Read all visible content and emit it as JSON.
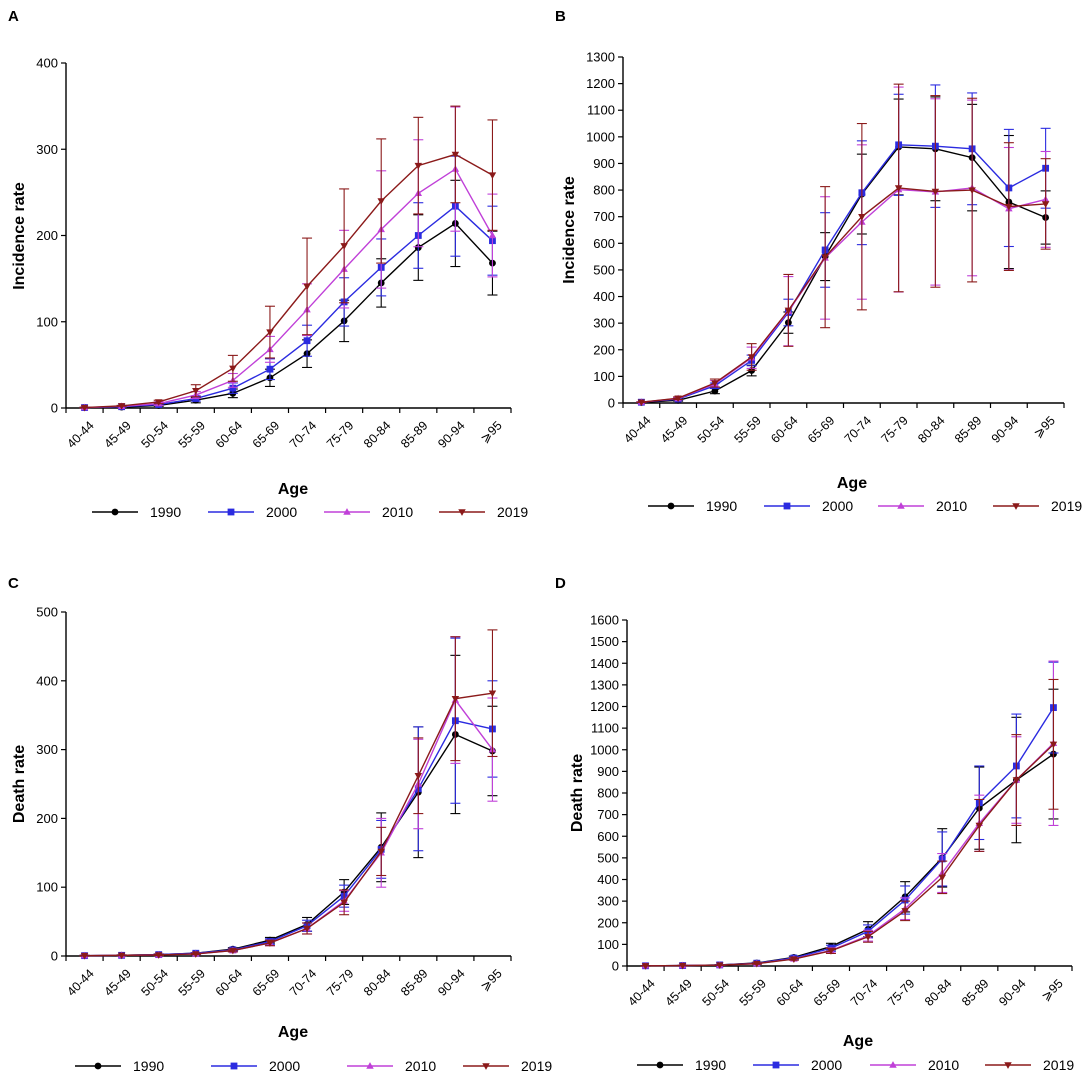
{
  "figure": {
    "panels": [
      {
        "letter": "A",
        "xlabel": "Age",
        "ylabel": "Incidence rate"
      },
      {
        "letter": "B",
        "xlabel": "Age",
        "ylabel": "Incidence rate"
      },
      {
        "letter": "C",
        "xlabel": "Age",
        "ylabel": "Death rate"
      },
      {
        "letter": "D",
        "xlabel": "Age",
        "ylabel": "Death rate"
      }
    ]
  },
  "chart_data": [
    {
      "panel": "A",
      "type": "line",
      "title": "",
      "xlabel": "Age",
      "ylabel": "Incidence rate",
      "ylim": [
        0,
        400
      ],
      "yticks": [
        0,
        100,
        200,
        300,
        400
      ],
      "legend_position": "bottom",
      "categories": [
        "40-44",
        "45-49",
        "50-54",
        "55-59",
        "60-64",
        "65-69",
        "70-74",
        "75-79",
        "80-84",
        "85-89",
        "90-94",
        "⩾95"
      ],
      "series": [
        {
          "name": "1990",
          "color": "#000000",
          "marker": "circle",
          "values": [
            0.5,
            1,
            3,
            9,
            17,
            35,
            63,
            101,
            145,
            186,
            214,
            168
          ],
          "errors": [
            0.5,
            0.5,
            1,
            3,
            5,
            10,
            16,
            24,
            28,
            38,
            50,
            37
          ]
        },
        {
          "name": "2000",
          "color": "#2b2be0",
          "marker": "square",
          "values": [
            0.5,
            1.5,
            4,
            11,
            23,
            45,
            78,
            123,
            163,
            200,
            234,
            194
          ],
          "errors": [
            0.5,
            0.5,
            1,
            3,
            6,
            12,
            18,
            28,
            33,
            38,
            58,
            40
          ]
        },
        {
          "name": "2010",
          "color": "#c040d8",
          "marker": "triangle-up",
          "values": [
            0.5,
            2,
            5,
            15,
            32,
            68,
            114,
            161,
            207,
            249,
            277,
            200
          ],
          "errors": [
            0.5,
            0.5,
            2,
            4,
            8,
            15,
            30,
            45,
            68,
            62,
            72,
            48
          ]
        },
        {
          "name": "2019",
          "color": "#8b1a1a",
          "marker": "triangle-down",
          "values": [
            0.5,
            2.5,
            7,
            20,
            46,
            88,
            141,
            188,
            240,
            281,
            294,
            270
          ],
          "errors": [
            0.5,
            0.5,
            2,
            7,
            15,
            30,
            56,
            66,
            72,
            56,
            56,
            64
          ]
        }
      ]
    },
    {
      "panel": "B",
      "type": "line",
      "title": "",
      "xlabel": "Age",
      "ylabel": "Incidence rate",
      "ylim": [
        0,
        1300
      ],
      "yticks": [
        0,
        100,
        200,
        300,
        400,
        500,
        600,
        700,
        800,
        900,
        1000,
        1100,
        1200,
        1300
      ],
      "legend_position": "bottom",
      "categories": [
        "40-44",
        "45-49",
        "50-54",
        "55-59",
        "60-64",
        "65-69",
        "70-74",
        "75-79",
        "80-84",
        "85-89",
        "90-94",
        "⩾95"
      ],
      "series": [
        {
          "name": "1990",
          "color": "#000000",
          "marker": "circle",
          "values": [
            2,
            10,
            45,
            122,
            302,
            550,
            785,
            962,
            955,
            922,
            755,
            697
          ],
          "errors": [
            1,
            3,
            10,
            20,
            40,
            90,
            150,
            180,
            195,
            200,
            250,
            100
          ]
        },
        {
          "name": "2000",
          "color": "#2b2be0",
          "marker": "square",
          "values": [
            3,
            15,
            65,
            160,
            340,
            575,
            790,
            970,
            965,
            955,
            808,
            882
          ],
          "errors": [
            1,
            4,
            10,
            20,
            50,
            140,
            195,
            190,
            230,
            210,
            220,
            150
          ]
        },
        {
          "name": "2010",
          "color": "#c040d8",
          "marker": "triangle-up",
          "values": [
            3,
            17,
            72,
            170,
            345,
            545,
            680,
            802,
            793,
            808,
            730,
            765
          ],
          "errors": [
            1,
            4,
            12,
            40,
            130,
            230,
            290,
            385,
            350,
            330,
            230,
            180
          ]
        },
        {
          "name": "2019",
          "color": "#8b1a1a",
          "marker": "triangle-down",
          "values": [
            3,
            18,
            75,
            173,
            348,
            548,
            700,
            808,
            795,
            800,
            738,
            748
          ],
          "errors": [
            1,
            5,
            15,
            50,
            135,
            265,
            350,
            390,
            360,
            345,
            240,
            170
          ]
        }
      ]
    },
    {
      "panel": "C",
      "type": "line",
      "title": "",
      "xlabel": "Age",
      "ylabel": "Death rate",
      "ylim": [
        0,
        500
      ],
      "yticks": [
        0,
        100,
        200,
        300,
        400,
        500
      ],
      "legend_position": "bottom",
      "categories": [
        "40-44",
        "45-49",
        "50-54",
        "55-59",
        "60-64",
        "65-69",
        "70-74",
        "75-79",
        "80-84",
        "85-89",
        "90-94",
        "⩾95"
      ],
      "series": [
        {
          "name": "1990",
          "color": "#000000",
          "marker": "circle",
          "values": [
            0.5,
            1,
            2,
            4,
            10,
            23,
            46,
            93,
            158,
            238,
            322,
            298
          ],
          "errors": [
            0.5,
            0.5,
            1,
            1,
            2,
            4,
            10,
            18,
            50,
            95,
            115,
            65
          ]
        },
        {
          "name": "2000",
          "color": "#2b2be0",
          "marker": "square",
          "values": [
            0.5,
            1,
            2,
            4,
            9,
            21,
            44,
            87,
            155,
            243,
            342,
            330
          ],
          "errors": [
            0.5,
            0.5,
            1,
            1,
            2,
            4,
            8,
            16,
            42,
            90,
            120,
            70
          ]
        },
        {
          "name": "2010",
          "color": "#c040d8",
          "marker": "triangle-up",
          "values": [
            0.5,
            1,
            1.5,
            3,
            8,
            19,
            40,
            80,
            150,
            250,
            372,
            300
          ],
          "errors": [
            0.5,
            0.5,
            1,
            1,
            2,
            4,
            8,
            15,
            50,
            65,
            92,
            75
          ]
        },
        {
          "name": "2019",
          "color": "#8b1a1a",
          "marker": "triangle-down",
          "values": [
            0.5,
            1,
            1.5,
            3,
            8,
            19,
            40,
            78,
            152,
            262,
            374,
            382
          ],
          "errors": [
            0.5,
            0.5,
            1,
            1,
            2,
            4,
            8,
            18,
            35,
            55,
            90,
            92
          ]
        }
      ]
    },
    {
      "panel": "D",
      "type": "line",
      "title": "",
      "xlabel": "Age",
      "ylabel": "Death rate",
      "ylim": [
        0,
        1600
      ],
      "yticks": [
        0,
        100,
        200,
        300,
        400,
        500,
        600,
        700,
        800,
        900,
        1000,
        1100,
        1200,
        1300,
        1400,
        1500,
        1600
      ],
      "legend_position": "bottom",
      "categories": [
        "40-44",
        "45-49",
        "50-54",
        "55-59",
        "60-64",
        "65-69",
        "70-74",
        "75-79",
        "80-84",
        "85-89",
        "90-94",
        "⩾95"
      ],
      "series": [
        {
          "name": "1990",
          "color": "#000000",
          "marker": "circle",
          "values": [
            1,
            2,
            5,
            14,
            40,
            90,
            170,
            320,
            500,
            730,
            860,
            980
          ],
          "errors": [
            1,
            1,
            1,
            3,
            6,
            15,
            35,
            70,
            135,
            190,
            290,
            300
          ]
        },
        {
          "name": "2000",
          "color": "#2b2be0",
          "marker": "square",
          "values": [
            1,
            2,
            5,
            13,
            37,
            82,
            160,
            305,
            495,
            755,
            925,
            1195
          ],
          "errors": [
            1,
            1,
            1,
            3,
            6,
            14,
            30,
            65,
            125,
            170,
            240,
            210
          ]
        },
        {
          "name": "2010",
          "color": "#c040d8",
          "marker": "triangle-up",
          "values": [
            1,
            2,
            4,
            11,
            33,
            72,
            140,
            265,
            430,
            660,
            860,
            1030
          ],
          "errors": [
            1,
            1,
            1,
            3,
            5,
            12,
            25,
            50,
            90,
            130,
            200,
            380
          ]
        },
        {
          "name": "2019",
          "color": "#8b1a1a",
          "marker": "triangle-down",
          "values": [
            1,
            2,
            4,
            11,
            32,
            70,
            135,
            255,
            410,
            650,
            860,
            1025
          ],
          "errors": [
            1,
            1,
            1,
            3,
            5,
            12,
            25,
            45,
            75,
            120,
            210,
            300
          ]
        }
      ]
    }
  ]
}
